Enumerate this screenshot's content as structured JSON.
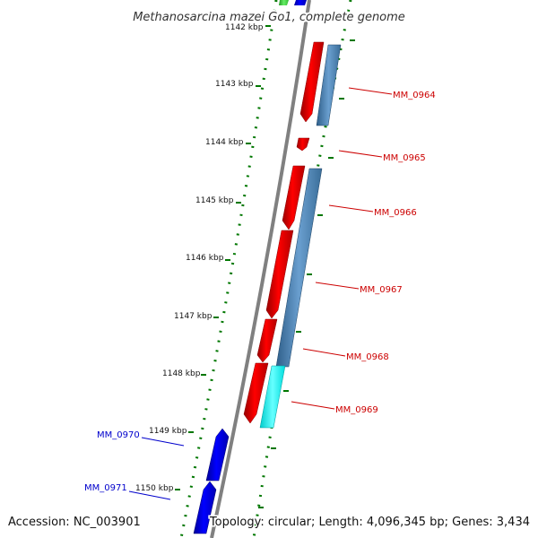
{
  "title": "Methanosarcina mazei Go1, complete genome",
  "footer": {
    "accession": "Accession: NC_003901",
    "info": "Topology: circular; Length: 4,096,345 bp; Genes: 3,434"
  },
  "ticks": [
    "1142 kbp",
    "1143 kbp",
    "1144 kbp",
    "1145 kbp",
    "1146 kbp",
    "1147 kbp",
    "1148 kbp",
    "1149 kbp",
    "1150 kbp"
  ],
  "genes": {
    "right": [
      {
        "label": "MM_0964",
        "color": "#cc0000"
      },
      {
        "label": "MM_0965",
        "color": "#cc0000"
      },
      {
        "label": "MM_0966",
        "color": "#cc0000"
      },
      {
        "label": "MM_0967",
        "color": "#cc0000"
      },
      {
        "label": "MM_0968",
        "color": "#cc0000"
      },
      {
        "label": "MM_0969",
        "color": "#cc0000"
      }
    ],
    "left": [
      {
        "label": "MM_0970",
        "color": "#0000cc"
      },
      {
        "label": "MM_0971",
        "color": "#0000cc"
      }
    ]
  },
  "colors": {
    "cds_forward": "#ff0000",
    "cds_reverse": "#0000ff",
    "feature_steelblue": "#4682b4",
    "feature_cyan": "#00ffff",
    "feature_green": "#33cc33",
    "backbone": "#808080",
    "tick": "#007700"
  }
}
